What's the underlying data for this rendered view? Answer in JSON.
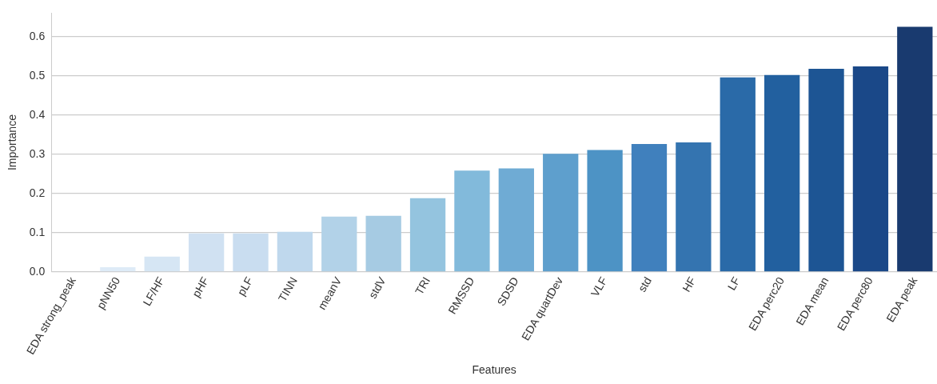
{
  "chart_data": {
    "type": "bar",
    "xlabel": "Features",
    "ylabel": "Importance",
    "categories": [
      "EDA strong_peak",
      "pNN50",
      "LF/HF",
      "pHF",
      "pLF",
      "TINN",
      "meanV",
      "stdV",
      "TRI",
      "RMSSD",
      "SDSD",
      "EDA quartDev",
      "VLF",
      "std",
      "HF",
      "LF",
      "EDA perc20",
      "EDA mean",
      "EDA perc80",
      "EDA peak"
    ],
    "values": [
      0,
      0.012,
      0.039,
      0.098,
      0.098,
      0.102,
      0.141,
      0.143,
      0.188,
      0.258,
      0.264,
      0.301,
      0.311,
      0.326,
      0.33,
      0.496,
      0.502,
      0.518,
      0.524,
      0.625
    ],
    "colors": [
      "#e4eef9",
      "#deebf7",
      "#d6e6f4",
      "#d0e1f2",
      "#c9ddf0",
      "#bfd8ed",
      "#b2d2e8",
      "#a6cbe3",
      "#94c4df",
      "#82badb",
      "#6fabd4",
      "#5e9fcd",
      "#4d93c5",
      "#4080bd",
      "#3474b0",
      "#2a6aa8",
      "#22609f",
      "#1d5594",
      "#1a4888",
      "#193a6f"
    ],
    "ylim": [
      0,
      0.66
    ],
    "yticks": [
      {
        "value": 0,
        "label": "0.0"
      },
      0.1,
      0.2,
      0.3,
      0.4,
      0.5,
      0.6
    ],
    "grid": "y",
    "legend": false
  }
}
